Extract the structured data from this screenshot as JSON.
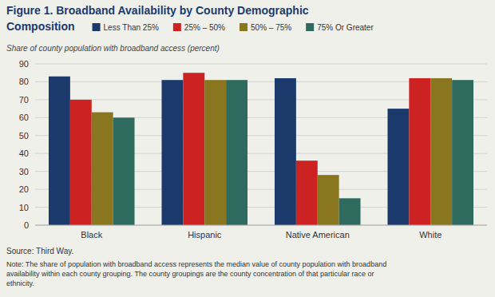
{
  "chart_data": {
    "type": "bar",
    "title": "Figure 1. Broadband Availability by County Demographic\nComposition",
    "ylabel": "Share of county population with broadband access (percent)",
    "categories": [
      "Black",
      "Hispanic",
      "Native American",
      "White"
    ],
    "series": [
      {
        "name": "Less Than 25%",
        "color": "#1b3a6b",
        "values": [
          83,
          81,
          82,
          65
        ]
      },
      {
        "name": "25% – 50%",
        "color": "#cc2222",
        "values": [
          70,
          85,
          36,
          82
        ]
      },
      {
        "name": "50% – 75%",
        "color": "#8b7620",
        "values": [
          63,
          81,
          28,
          82
        ]
      },
      {
        "name": "75% Or Greater",
        "color": "#2e6b5e",
        "values": [
          60,
          81,
          15,
          81
        ]
      }
    ],
    "ylim": [
      0,
      90
    ],
    "yticks": [
      0,
      10,
      20,
      30,
      40,
      50,
      60,
      70,
      80,
      90
    ],
    "grid": true,
    "legend": "top",
    "annotations": [
      "Source: Third Way.",
      "Note: The share of population with broadband access represents the median value of county population with broadband\navailability within each county grouping. The county groupings are the county concentration of that particular race or\nethnicity."
    ]
  }
}
